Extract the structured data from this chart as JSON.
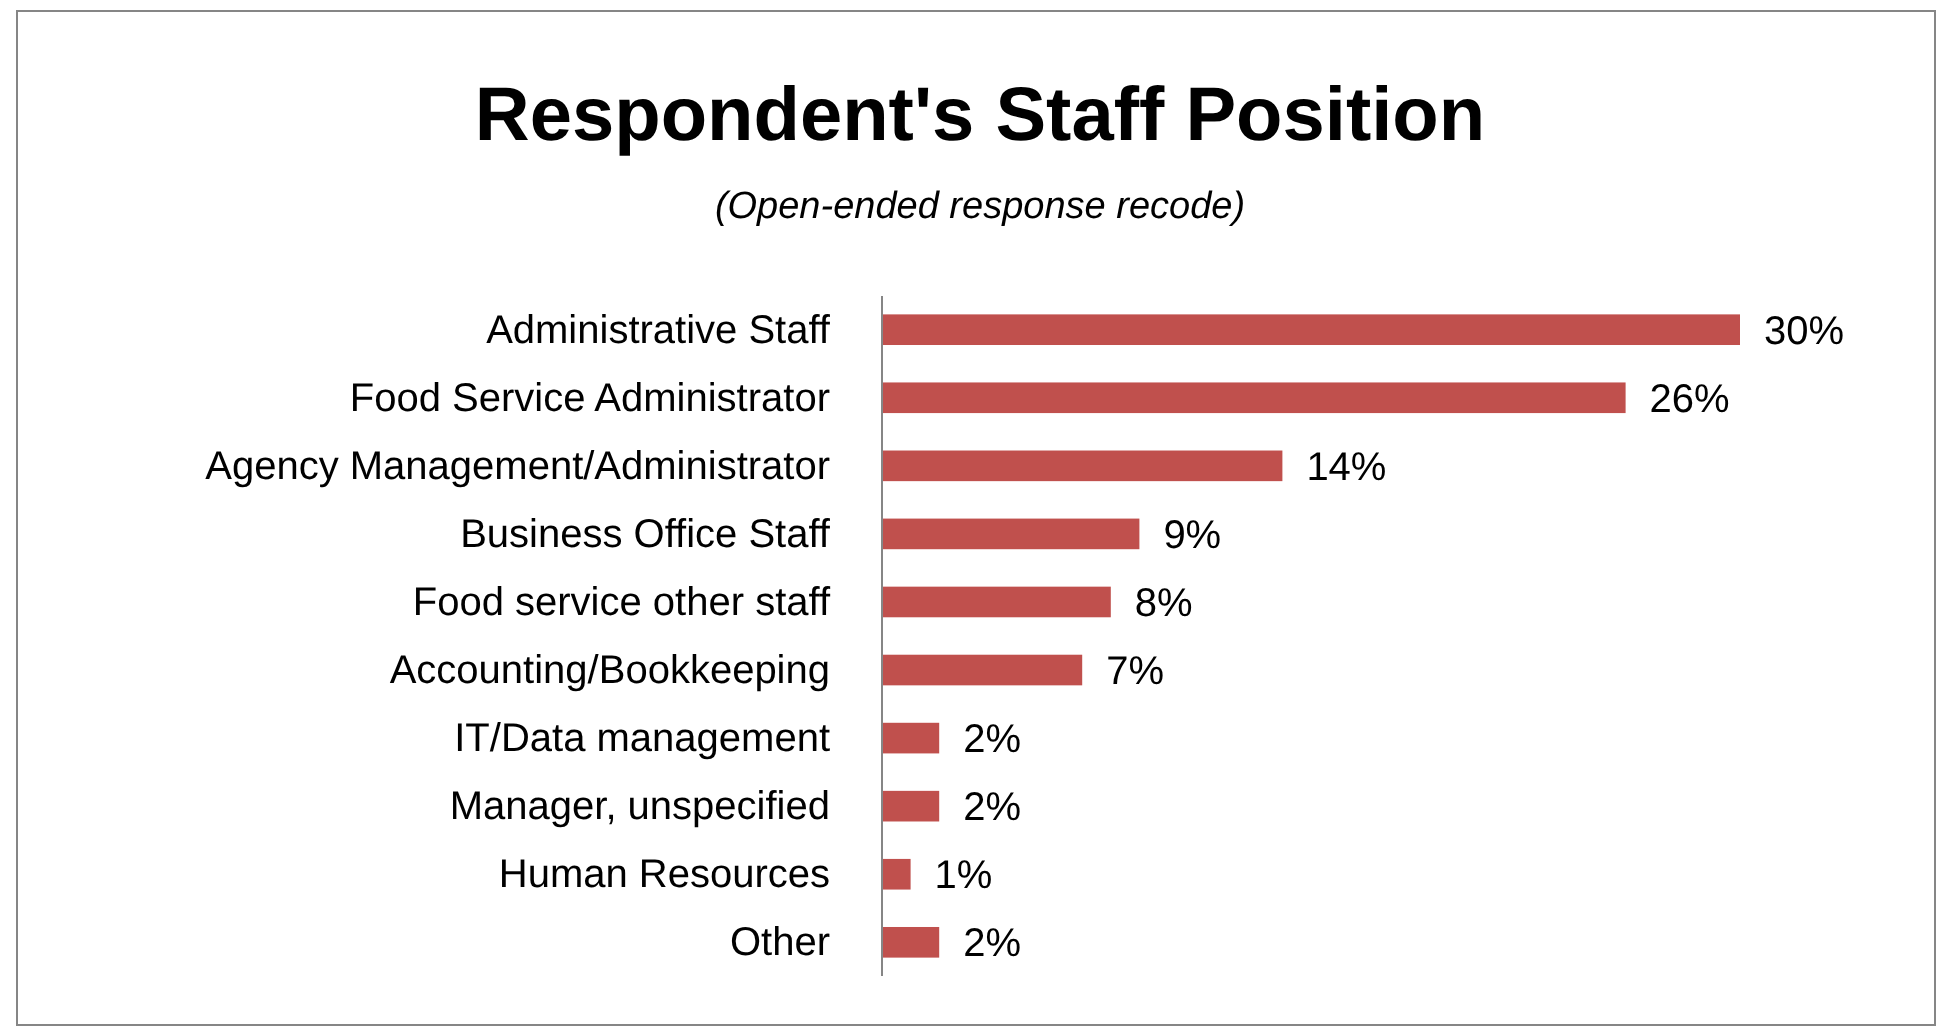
{
  "chart_data": {
    "type": "bar",
    "orientation": "horizontal",
    "title": "Respondent's Staff Position",
    "subtitle": "(Open-ended response recode)",
    "categories": [
      "Administrative Staff",
      "Food Service Administrator",
      "Agency Management/Administrator",
      "Business Office Staff",
      "Food service other staff",
      "Accounting/Bookkeeping",
      "IT/Data management",
      "Manager, unspecified",
      "Human Resources",
      "Other"
    ],
    "values": [
      30,
      26,
      14,
      9,
      8,
      7,
      2,
      2,
      1,
      2
    ],
    "value_labels": [
      "30%",
      "26%",
      "14%",
      "9%",
      "8%",
      "7%",
      "2%",
      "2%",
      "1%",
      "2%"
    ],
    "color": "#c0504d"
  }
}
